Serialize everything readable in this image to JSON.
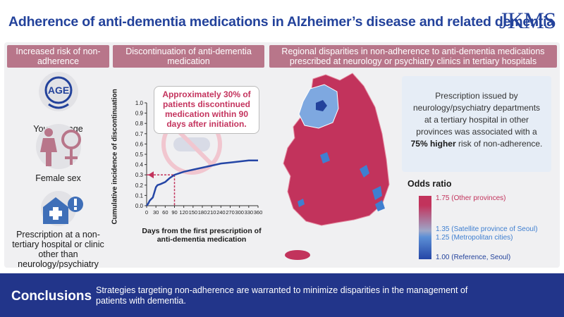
{
  "title": "Adherence of anti-dementia medications in Alzheimer’s disease and related dementia",
  "logo": "JKMS",
  "headers": {
    "risk": "Increased risk of non-adherence",
    "discontinuation": "Discontinuation of anti-dementia medication",
    "regional": "Regional disparities in non-adherence to anti-dementia medications prescribed at neurology or psychiatry clinics in tertiary hospitals"
  },
  "risk_factors": [
    {
      "label": "Younger age",
      "icon": "age-icon",
      "icon_text": "AGE"
    },
    {
      "label": "Female sex",
      "icon": "female-icon"
    },
    {
      "label": "Prescription at a non-tertiary hospital or clinic other than neurology/psychiatry",
      "icon": "hospital-alert-icon"
    }
  ],
  "callout": "Approximately 30% of patients discontinued medication within 90 days after initiation.",
  "chart_data": {
    "type": "line",
    "title": "",
    "xlabel": "Days from the first prescription of anti-dementia medication",
    "ylabel": "Cumulative incidence of discontinuation",
    "xlim": [
      0,
      360
    ],
    "ylim": [
      0,
      1.0
    ],
    "x_ticks": [
      "0",
      "30",
      "60",
      "90",
      "120",
      "150",
      "180",
      "210",
      "240",
      "270",
      "300",
      "330",
      "360"
    ],
    "y_ticks": [
      "0.0",
      "0.1",
      "0.2",
      "0.3",
      "0.4",
      "0.5",
      "0.6",
      "0.7",
      "0.8",
      "0.9",
      "1.0"
    ],
    "series": [
      {
        "x": [
          0,
          5,
          10,
          20,
          30,
          35,
          45,
          60,
          75,
          90,
          120,
          150,
          180,
          210,
          240,
          270,
          300,
          330,
          360
        ],
        "y": [
          0.0,
          0.02,
          0.05,
          0.08,
          0.18,
          0.2,
          0.21,
          0.23,
          0.27,
          0.3,
          0.33,
          0.35,
          0.37,
          0.39,
          0.41,
          0.42,
          0.43,
          0.44,
          0.44
        ]
      }
    ],
    "highlight_x": 90,
    "highlight_y": 0.3,
    "grid": false
  },
  "note": {
    "prefix": "Prescription issued by neurology/psychiatry departments at a tertiary hospital in other provinces was associated with a ",
    "highlight": "75% higher",
    "suffix": " risk of non-adherence."
  },
  "odds": {
    "title": "Odds ratio",
    "labels": [
      {
        "text": "1.75 (Other provinces)",
        "color": "#c2335c"
      },
      {
        "text": "1.35 (Satellite province of Seoul)",
        "color": "#3f7fd0"
      },
      {
        "text": "1.25 (Metropolitan cities)",
        "color": "#3f7fd0"
      },
      {
        "text": "1.00 (Reference, Seoul)",
        "color": "#23429b"
      }
    ]
  },
  "conclusions": {
    "title": "Conclusions",
    "text": "Strategies targeting non-adherence are warranted to minimize disparities in the management of patients with dementia."
  },
  "colors": {
    "brand": "#23429b",
    "accent": "#c2335c",
    "light_blue": "#5c8fd6",
    "header": "#b8768a"
  }
}
